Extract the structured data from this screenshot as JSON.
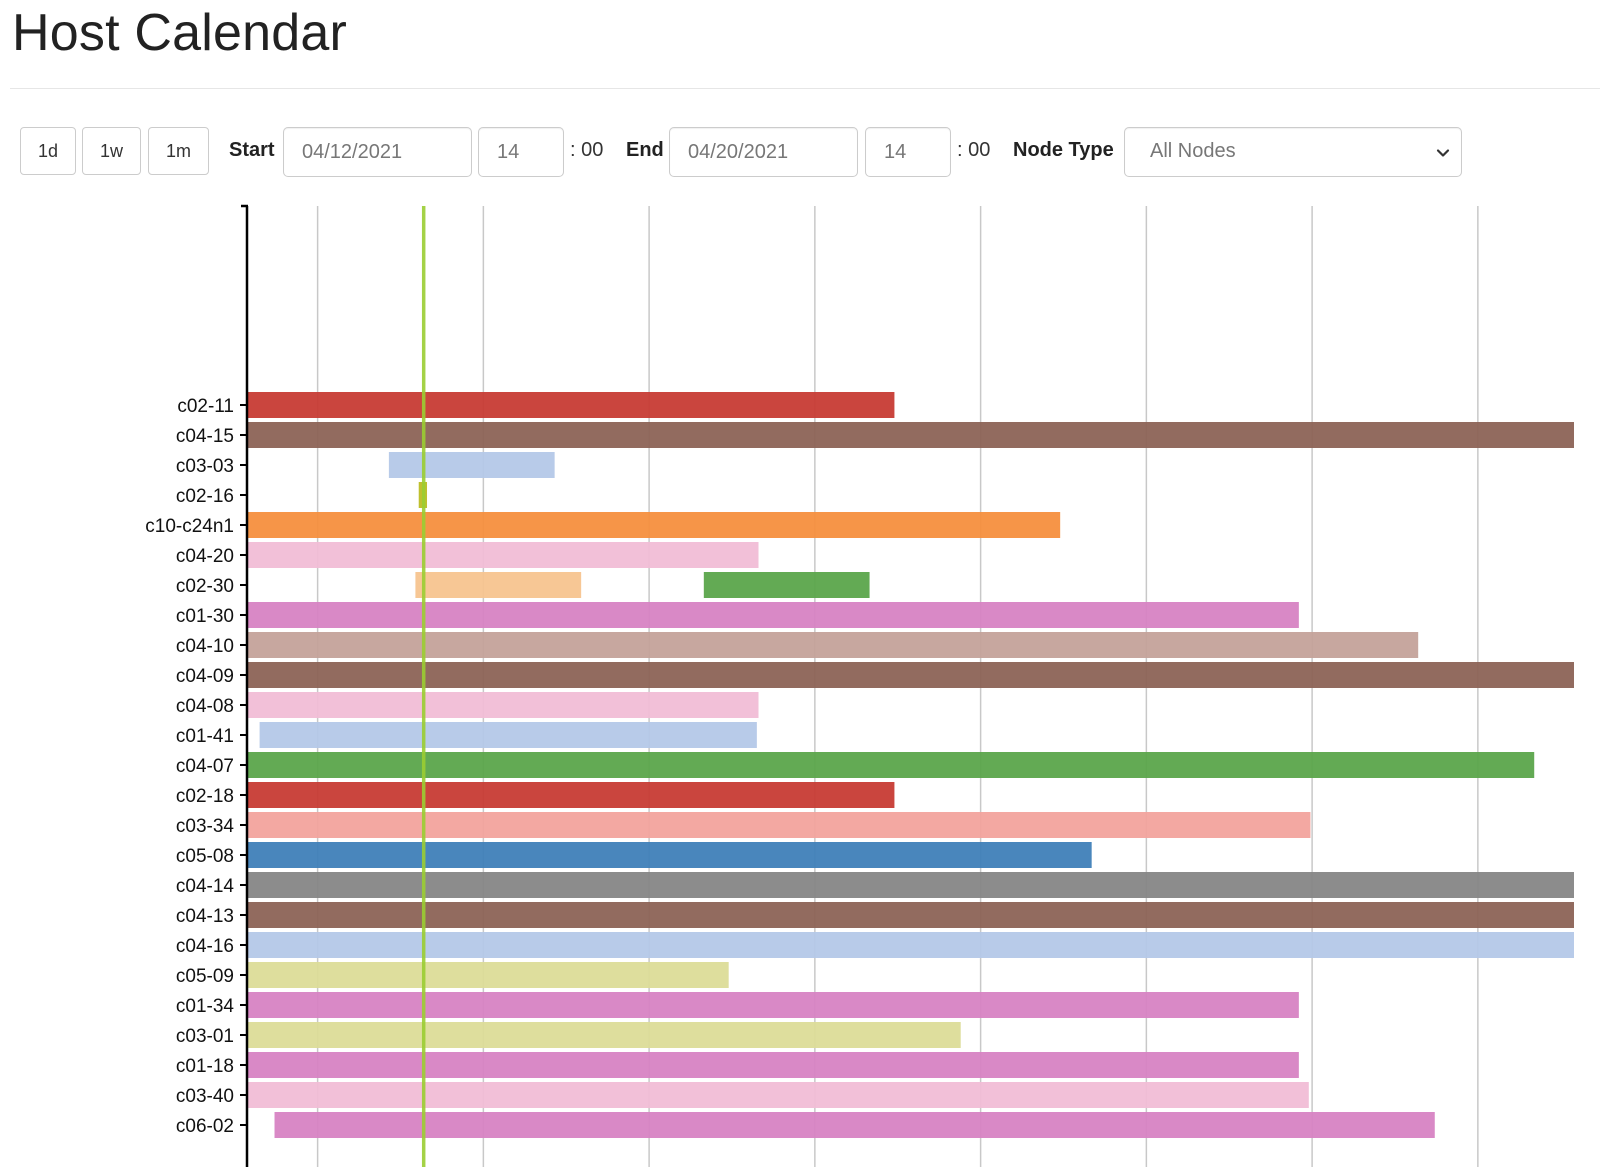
{
  "header": {
    "title": "Host Calendar"
  },
  "toolbar": {
    "range_buttons": [
      {
        "label": "1d"
      },
      {
        "label": "1w"
      },
      {
        "label": "1m"
      }
    ],
    "start_label": "Start",
    "start_date": "04/12/2021",
    "start_hour": "14",
    "start_minutes": ": 00",
    "end_label": "End",
    "end_date": "04/20/2021",
    "end_hour": "14",
    "end_minutes": ": 00",
    "node_type_label": "Node Type",
    "node_type_selected": "All Nodes",
    "select_icon": "chevron-down-icon"
  },
  "colors": {
    "axis": "#000000",
    "gridline": "#c8c8c8",
    "now_marker": "#9acd32"
  },
  "chart_data": {
    "type": "timeline",
    "x_range_days": [
      0,
      8
    ],
    "x_grid_days": [
      0.42,
      1.42,
      2.42,
      3.42,
      4.42,
      5.42,
      6.42,
      7.42
    ],
    "now_day": 1.06,
    "hosts": [
      {
        "label": "c02-11",
        "color": "#c73b34",
        "segments": [
          [
            0,
            3.9
          ]
        ]
      },
      {
        "label": "c04-15",
        "color": "#8c6356",
        "segments": [
          [
            0,
            8.0
          ]
        ]
      },
      {
        "label": "c03-03",
        "color": "#b4c8e8",
        "segments": [
          [
            0.85,
            1.85
          ]
        ]
      },
      {
        "label": "c02-16",
        "color": "#bcbd22",
        "segments": [
          [
            1.03,
            1.08
          ]
        ]
      },
      {
        "label": "c10-c24n1",
        "color": "#f58f3e",
        "segments": [
          [
            0,
            4.9
          ]
        ]
      },
      {
        "label": "c04-20",
        "color": "#f1bdd6",
        "segments": [
          [
            0,
            3.08
          ]
        ]
      },
      {
        "label": "c02-30",
        "color": "#f7c48f",
        "segments": [
          [
            1.01,
            2.01
          ]
        ]
      },
      {
        "label": "c02-30",
        "color": "#5ba54b",
        "segments": [
          [
            2.75,
            3.75
          ]
        ]
      },
      {
        "label": "c01-30",
        "color": "#d783c3",
        "segments": [
          [
            0,
            6.34
          ]
        ]
      },
      {
        "label": "c04-10",
        "color": "#c4a29a",
        "segments": [
          [
            0,
            7.06
          ]
        ]
      },
      {
        "label": "c04-09",
        "color": "#8c6356",
        "segments": [
          [
            0,
            8.0
          ]
        ]
      },
      {
        "label": "c04-08",
        "color": "#f1bdd6",
        "segments": [
          [
            0,
            3.08
          ]
        ]
      },
      {
        "label": "c01-41",
        "color": "#b4c8e8",
        "segments": [
          [
            0.07,
            3.07
          ]
        ]
      },
      {
        "label": "c04-07",
        "color": "#5ba54b",
        "segments": [
          [
            0,
            7.76
          ]
        ]
      },
      {
        "label": "c02-18",
        "color": "#c73b34",
        "segments": [
          [
            0,
            3.9
          ]
        ]
      },
      {
        "label": "c03-34",
        "color": "#f2a39d",
        "segments": [
          [
            0,
            6.41
          ]
        ]
      },
      {
        "label": "c05-08",
        "color": "#3f7fb8",
        "segments": [
          [
            0,
            5.09
          ]
        ]
      },
      {
        "label": "c04-14",
        "color": "#868686",
        "segments": [
          [
            0,
            8.0
          ]
        ]
      },
      {
        "label": "c04-13",
        "color": "#8c6356",
        "segments": [
          [
            0,
            8.0
          ]
        ]
      },
      {
        "label": "c04-16",
        "color": "#b4c8e8",
        "segments": [
          [
            0,
            8.0
          ]
        ]
      },
      {
        "label": "c05-09",
        "color": "#dcdc98",
        "segments": [
          [
            0,
            2.9
          ]
        ]
      },
      {
        "label": "c01-34",
        "color": "#d783c3",
        "segments": [
          [
            0,
            6.34
          ]
        ]
      },
      {
        "label": "c03-01",
        "color": "#dcdc98",
        "segments": [
          [
            0,
            4.3
          ]
        ]
      },
      {
        "label": "c01-18",
        "color": "#d783c3",
        "segments": [
          [
            0,
            6.34
          ]
        ]
      },
      {
        "label": "c03-40",
        "color": "#f1bdd6",
        "segments": [
          [
            0,
            6.4
          ]
        ]
      },
      {
        "label": "c06-02",
        "color": "#d783c3",
        "segments": [
          [
            0.16,
            7.16
          ]
        ]
      }
    ]
  }
}
